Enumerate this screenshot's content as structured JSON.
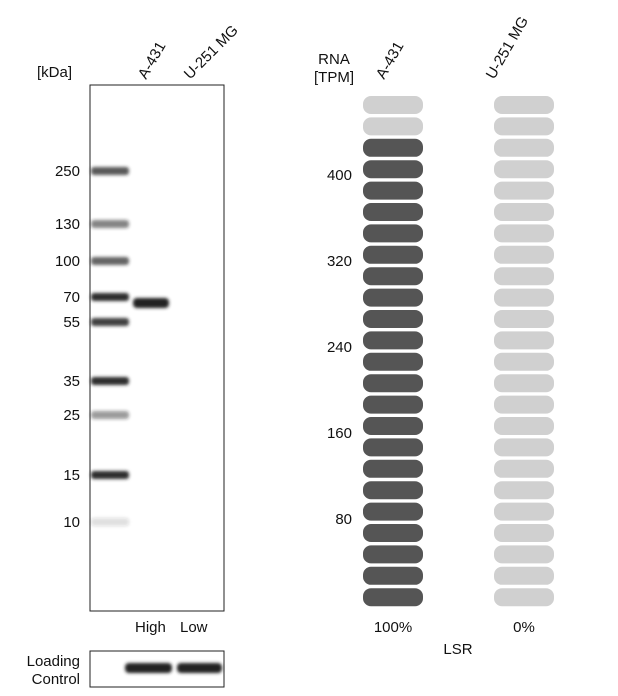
{
  "western_blot": {
    "unit_label": "[kDa]",
    "lanes": [
      "A-431",
      "U-251 MG"
    ],
    "markers": [
      "250",
      "130",
      "100",
      "70",
      "55",
      "35",
      "25",
      "15",
      "10"
    ],
    "expression": [
      "High",
      "Low"
    ],
    "loading_control": "Loading\nControl"
  },
  "rna": {
    "axis_label": "RNA\n[TPM]",
    "lanes": [
      "A-431",
      "U-251 MG"
    ],
    "ticks": [
      "400",
      "320",
      "240",
      "160",
      "80"
    ],
    "percentages": [
      "100%",
      "0%"
    ],
    "gene": "LSR"
  }
}
